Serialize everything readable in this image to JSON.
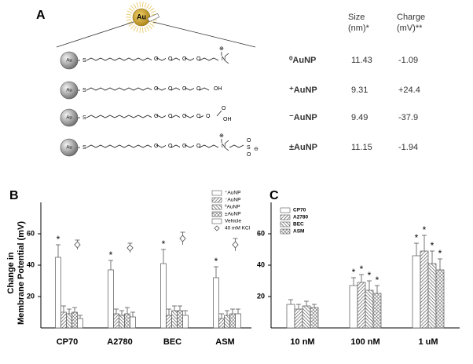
{
  "panel_a": {
    "label": "A",
    "particle": "Au",
    "atoms": [
      "S",
      "O",
      "OH",
      "N",
      "⊕",
      "⊖"
    ],
    "headers": [
      [
        "Size",
        "(nm)*"
      ],
      [
        "Charge",
        "(mV)**"
      ]
    ],
    "rows": [
      {
        "name": "⁰AuNP",
        "size": "11.43",
        "charge": "-1.09"
      },
      {
        "name": "⁺AuNP",
        "size": "9.31",
        "charge": "+24.4"
      },
      {
        "name": "⁻AuNP",
        "size": "9.49",
        "charge": "-37.9"
      },
      {
        "name": "±AuNP",
        "size": "11.15",
        "charge": "-1.94"
      }
    ]
  },
  "chart_data": [
    {
      "type": "bar",
      "label": "B",
      "ylabel": [
        "Change in",
        "Membrane Potential (mV)"
      ],
      "categories": [
        "CP70",
        "A2780",
        "BEC",
        "ASM"
      ],
      "ylim": [
        0,
        80
      ],
      "yticks": [
        20,
        40,
        60
      ],
      "legend": "upper right",
      "series": [
        {
          "name": "⁺AuNP",
          "color": "#ffffff",
          "pattern": "none",
          "values": [
            45,
            37,
            41,
            32
          ],
          "errors": [
            8,
            6,
            9,
            7
          ],
          "sig": [
            "*",
            "*",
            "*",
            "*"
          ]
        },
        {
          "name": "⁻AuNP",
          "color": "#ffffff",
          "pattern": "forward",
          "values": [
            10,
            9,
            8,
            6
          ],
          "errors": [
            4,
            3,
            4,
            3
          ]
        },
        {
          "name": "⁰AuNP",
          "color": "#ffffff",
          "pattern": "backward",
          "values": [
            9,
            8,
            11,
            8
          ],
          "errors": [
            3,
            3,
            3,
            3
          ]
        },
        {
          "name": "±AuNP",
          "color": "#ffffff",
          "pattern": "cross",
          "values": [
            10,
            9,
            11,
            9
          ],
          "errors": [
            3,
            4,
            3,
            3
          ]
        },
        {
          "name": "Vehicle",
          "color": "#ffffff",
          "pattern": "none",
          "values": [
            6,
            7,
            8,
            9
          ],
          "errors": [
            2,
            3,
            3,
            3
          ]
        },
        {
          "name": "40 mM KCl",
          "color": "#555555",
          "marker": "diamond",
          "values": [
            53,
            51,
            57,
            53
          ],
          "errors": [
            3,
            3,
            4,
            4
          ]
        }
      ]
    },
    {
      "type": "bar",
      "label": "C",
      "categories": [
        "10 nM",
        "100 nM",
        "1 uM"
      ],
      "ylim": [
        0,
        80
      ],
      "yticks": [
        20,
        40,
        60
      ],
      "legend": "upper left",
      "series": [
        {
          "name": "CP70",
          "color": "#ffffff",
          "pattern": "none",
          "values": [
            15,
            27,
            46
          ],
          "errors": [
            3,
            5,
            8
          ],
          "sig": [
            null,
            "*",
            "*"
          ]
        },
        {
          "name": "A2780",
          "color": "#ffffff",
          "pattern": "forward",
          "values": [
            12,
            29,
            49
          ],
          "errors": [
            3,
            5,
            10
          ],
          "sig": [
            null,
            "*",
            "*"
          ]
        },
        {
          "name": "BEC",
          "color": "#ffffff",
          "pattern": "backward",
          "values": [
            14,
            24,
            41
          ],
          "errors": [
            3,
            6,
            8
          ],
          "sig": [
            null,
            "*",
            "*"
          ]
        },
        {
          "name": "ASM",
          "color": "#ffffff",
          "pattern": "cross",
          "values": [
            13,
            22,
            37
          ],
          "errors": [
            2,
            5,
            7
          ],
          "sig": [
            null,
            "*",
            "*"
          ]
        }
      ]
    }
  ]
}
